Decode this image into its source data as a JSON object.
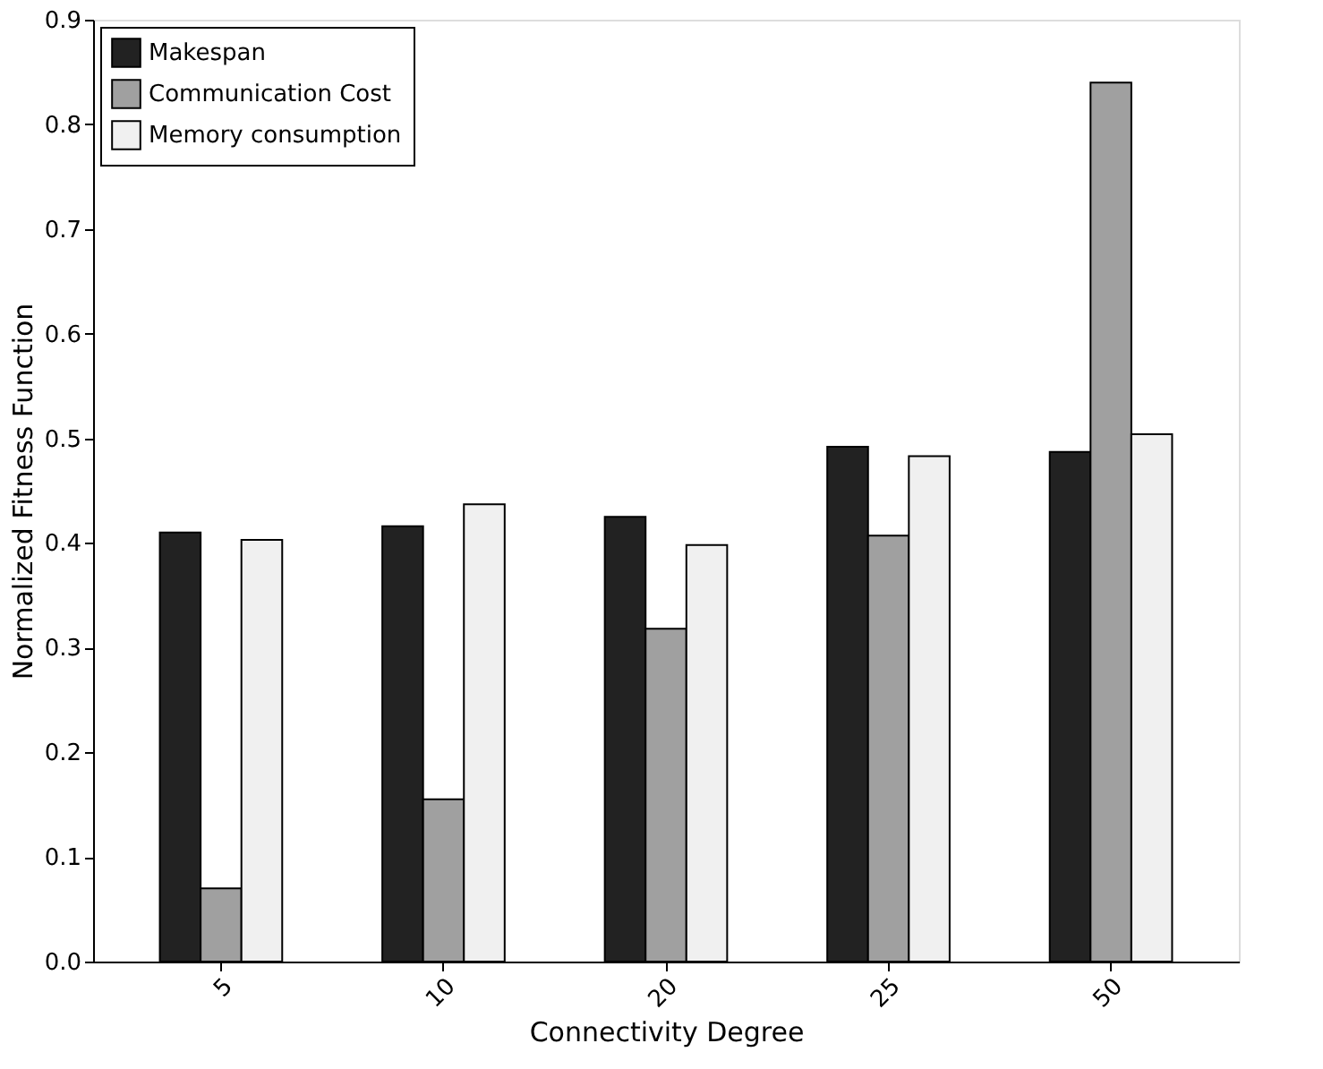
{
  "chart_data": {
    "type": "bar",
    "xlabel": "Connectivity Degree",
    "ylabel": "Normalized Fitness Function",
    "categories": [
      "5",
      "10",
      "20",
      "25",
      "50"
    ],
    "series": [
      {
        "name": "Makespan",
        "color": "#222222",
        "values": [
          0.41,
          0.416,
          0.425,
          0.492,
          0.487
        ]
      },
      {
        "name": "Communication Cost",
        "color": "#a0a0a0",
        "values": [
          0.07,
          0.155,
          0.318,
          0.407,
          0.84
        ]
      },
      {
        "name": "Memory consumption",
        "color": "#f0f0f0",
        "values": [
          0.403,
          0.437,
          0.398,
          0.483,
          0.504
        ]
      }
    ],
    "ylim": [
      0,
      0.9
    ],
    "yticks": [
      {
        "value": 0,
        "label": "0.0"
      },
      {
        "value": 0.1,
        "label": "0.1"
      },
      {
        "value": 0.2,
        "label": "0.2"
      },
      {
        "value": 0.3,
        "label": "0.3"
      },
      {
        "value": 0.4,
        "label": "0.4"
      },
      {
        "value": 0.5,
        "label": "0.5"
      },
      {
        "value": 0.6,
        "label": "0.6"
      },
      {
        "value": 0.7,
        "label": "0.7"
      },
      {
        "value": 0.8,
        "label": "0.8"
      },
      {
        "value": 0.9,
        "label": "0.9"
      }
    ],
    "grid": false,
    "legend": "top left"
  }
}
